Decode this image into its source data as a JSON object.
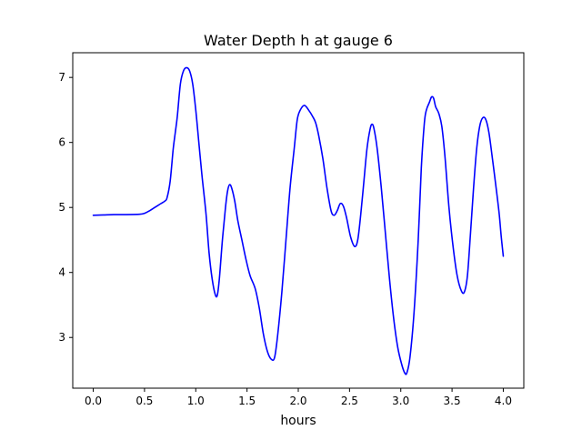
{
  "chart_data": {
    "type": "line",
    "title": "Water Depth h at gauge 6",
    "xlabel": "hours",
    "ylabel": "",
    "xlim": [
      -0.2,
      4.2
    ],
    "ylim": [
      2.22,
      7.38
    ],
    "xticks": [
      0.0,
      0.5,
      1.0,
      1.5,
      2.0,
      2.5,
      3.0,
      3.5,
      4.0
    ],
    "xtick_labels": [
      "0.0",
      "0.5",
      "1.0",
      "1.5",
      "2.0",
      "2.5",
      "3.0",
      "3.5",
      "4.0"
    ],
    "yticks": [
      3,
      4,
      5,
      6,
      7
    ],
    "ytick_labels": [
      "3",
      "4",
      "5",
      "6",
      "7"
    ],
    "grid": false,
    "legend": "none",
    "series": [
      {
        "color": "#0000ff",
        "points": [
          [
            0.0,
            4.88
          ],
          [
            0.1,
            4.885
          ],
          [
            0.2,
            4.89
          ],
          [
            0.3,
            4.89
          ],
          [
            0.45,
            4.895
          ],
          [
            0.5,
            4.91
          ],
          [
            0.55,
            4.95
          ],
          [
            0.6,
            5.0
          ],
          [
            0.65,
            5.05
          ],
          [
            0.7,
            5.1
          ],
          [
            0.72,
            5.15
          ],
          [
            0.75,
            5.4
          ],
          [
            0.78,
            5.9
          ],
          [
            0.8,
            6.15
          ],
          [
            0.82,
            6.4
          ],
          [
            0.85,
            6.9
          ],
          [
            0.88,
            7.1
          ],
          [
            0.91,
            7.15
          ],
          [
            0.94,
            7.1
          ],
          [
            0.97,
            6.9
          ],
          [
            1.0,
            6.5
          ],
          [
            1.03,
            6.0
          ],
          [
            1.06,
            5.5
          ],
          [
            1.1,
            4.9
          ],
          [
            1.13,
            4.3
          ],
          [
            1.16,
            3.9
          ],
          [
            1.19,
            3.66
          ],
          [
            1.21,
            3.65
          ],
          [
            1.23,
            3.9
          ],
          [
            1.26,
            4.5
          ],
          [
            1.29,
            5.0
          ],
          [
            1.31,
            5.25
          ],
          [
            1.33,
            5.35
          ],
          [
            1.35,
            5.3
          ],
          [
            1.38,
            5.1
          ],
          [
            1.41,
            4.8
          ],
          [
            1.45,
            4.5
          ],
          [
            1.49,
            4.2
          ],
          [
            1.53,
            3.95
          ],
          [
            1.58,
            3.75
          ],
          [
            1.62,
            3.45
          ],
          [
            1.66,
            3.05
          ],
          [
            1.7,
            2.78
          ],
          [
            1.74,
            2.66
          ],
          [
            1.77,
            2.7
          ],
          [
            1.8,
            3.05
          ],
          [
            1.84,
            3.7
          ],
          [
            1.88,
            4.5
          ],
          [
            1.92,
            5.3
          ],
          [
            1.96,
            5.9
          ],
          [
            1.99,
            6.35
          ],
          [
            2.02,
            6.5
          ],
          [
            2.06,
            6.57
          ],
          [
            2.1,
            6.5
          ],
          [
            2.14,
            6.4
          ],
          [
            2.17,
            6.3
          ],
          [
            2.2,
            6.1
          ],
          [
            2.24,
            5.75
          ],
          [
            2.28,
            5.3
          ],
          [
            2.32,
            4.95
          ],
          [
            2.35,
            4.88
          ],
          [
            2.38,
            4.95
          ],
          [
            2.41,
            5.06
          ],
          [
            2.44,
            5.02
          ],
          [
            2.47,
            4.85
          ],
          [
            2.51,
            4.55
          ],
          [
            2.55,
            4.4
          ],
          [
            2.58,
            4.5
          ],
          [
            2.61,
            4.9
          ],
          [
            2.64,
            5.4
          ],
          [
            2.67,
            5.9
          ],
          [
            2.7,
            6.2
          ],
          [
            2.72,
            6.28
          ],
          [
            2.74,
            6.2
          ],
          [
            2.77,
            5.9
          ],
          [
            2.81,
            5.3
          ],
          [
            2.85,
            4.6
          ],
          [
            2.89,
            3.9
          ],
          [
            2.93,
            3.3
          ],
          [
            2.97,
            2.85
          ],
          [
            3.01,
            2.58
          ],
          [
            3.04,
            2.45
          ],
          [
            3.06,
            2.46
          ],
          [
            3.09,
            2.7
          ],
          [
            3.13,
            3.4
          ],
          [
            3.17,
            4.5
          ],
          [
            3.2,
            5.6
          ],
          [
            3.23,
            6.3
          ],
          [
            3.25,
            6.5
          ],
          [
            3.28,
            6.62
          ],
          [
            3.3,
            6.7
          ],
          [
            3.32,
            6.68
          ],
          [
            3.34,
            6.55
          ],
          [
            3.37,
            6.45
          ],
          [
            3.4,
            6.25
          ],
          [
            3.43,
            5.8
          ],
          [
            3.47,
            5.0
          ],
          [
            3.51,
            4.4
          ],
          [
            3.55,
            3.95
          ],
          [
            3.59,
            3.72
          ],
          [
            3.62,
            3.7
          ],
          [
            3.65,
            3.95
          ],
          [
            3.68,
            4.6
          ],
          [
            3.71,
            5.3
          ],
          [
            3.74,
            5.9
          ],
          [
            3.77,
            6.25
          ],
          [
            3.8,
            6.38
          ],
          [
            3.83,
            6.35
          ],
          [
            3.86,
            6.15
          ],
          [
            3.89,
            5.8
          ],
          [
            3.93,
            5.3
          ],
          [
            3.96,
            4.9
          ],
          [
            3.98,
            4.55
          ],
          [
            4.0,
            4.25
          ]
        ]
      }
    ]
  }
}
